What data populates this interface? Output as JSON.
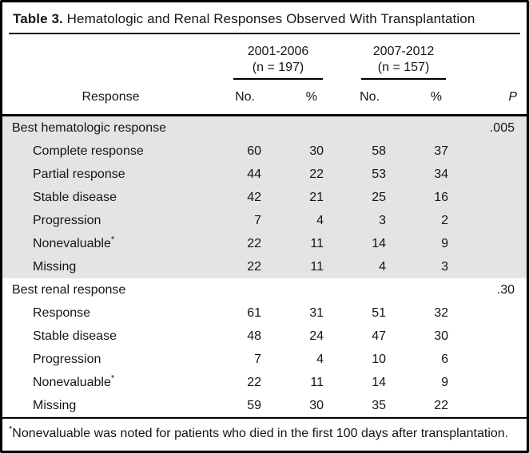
{
  "table": {
    "title_bold": "Table 3.",
    "title_rest": " Hematologic and Renal Responses Observed With Transplantation",
    "col_groups": [
      {
        "line1": "2001-2006",
        "line2": "(n = 197)"
      },
      {
        "line1": "2007-2012",
        "line2": "(n = 157)"
      }
    ],
    "headers": {
      "response": "Response",
      "no1": "No.",
      "pct1": "%",
      "no2": "No.",
      "pct2": "%",
      "p": "P"
    },
    "sections": [
      {
        "label": "Best hematologic response",
        "p": ".005",
        "rows": [
          {
            "label": "Complete response",
            "no1": "60",
            "pct1": "30",
            "no2": "58",
            "pct2": "37"
          },
          {
            "label": "Partial response",
            "no1": "44",
            "pct1": "22",
            "no2": "53",
            "pct2": "34"
          },
          {
            "label": "Stable disease",
            "no1": "42",
            "pct1": "21",
            "no2": "25",
            "pct2": "16"
          },
          {
            "label": "Progression",
            "no1": "7",
            "pct1": "4",
            "no2": "3",
            "pct2": "2"
          },
          {
            "label": "Nonevaluable",
            "sup": "*",
            "no1": "22",
            "pct1": "11",
            "no2": "14",
            "pct2": "9"
          },
          {
            "label": "Missing",
            "no1": "22",
            "pct1": "11",
            "no2": "4",
            "pct2": "3"
          }
        ]
      },
      {
        "label": "Best renal response",
        "p": ".30",
        "rows": [
          {
            "label": "Response",
            "no1": "61",
            "pct1": "31",
            "no2": "51",
            "pct2": "32"
          },
          {
            "label": "Stable disease",
            "no1": "48",
            "pct1": "24",
            "no2": "47",
            "pct2": "30"
          },
          {
            "label": "Progression",
            "no1": "7",
            "pct1": "4",
            "no2": "10",
            "pct2": "6"
          },
          {
            "label": "Nonevaluable",
            "sup": "*",
            "no1": "22",
            "pct1": "11",
            "no2": "14",
            "pct2": "9"
          },
          {
            "label": "Missing",
            "no1": "59",
            "pct1": "30",
            "no2": "35",
            "pct2": "22"
          }
        ]
      }
    ],
    "footnote_marker": "*",
    "footnote_text": "Nonevaluable was noted for patients who died in the first 100 days after transplantation.",
    "colors": {
      "shade": "#e4e4e4",
      "rule": "#000000",
      "background": "#ffffff"
    }
  }
}
